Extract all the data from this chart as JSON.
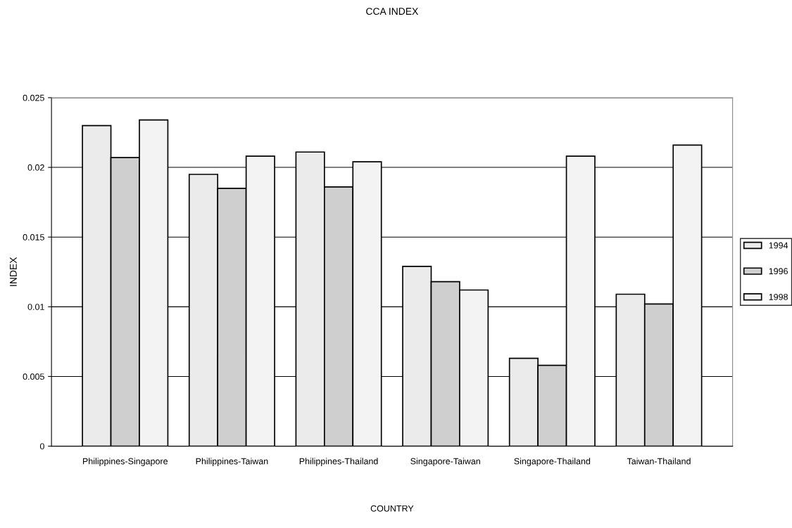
{
  "chart_data": {
    "type": "bar",
    "title": "CCA INDEX",
    "xlabel": "COUNTRY",
    "ylabel": "INDEX",
    "categories": [
      "Philippines-Singapore",
      "Philippines-Taiwan",
      "Philippines-Thailand",
      "Singapore-Taiwan",
      "Singapore-Thailand",
      "Taiwan-Thailand"
    ],
    "series": [
      {
        "name": "1994",
        "color": "#ebebeb",
        "values": [
          0.023,
          0.0195,
          0.0211,
          0.0129,
          0.0063,
          0.0109
        ]
      },
      {
        "name": "1996",
        "color": "#cfcfcf",
        "values": [
          0.0207,
          0.0185,
          0.0186,
          0.0118,
          0.0058,
          0.0102
        ]
      },
      {
        "name": "1998",
        "color": "#f3f3f3",
        "values": [
          0.0234,
          0.0208,
          0.0204,
          0.0112,
          0.0208,
          0.0216
        ]
      }
    ],
    "ylim": [
      0,
      0.025
    ],
    "yticks": [
      0,
      0.005,
      0.01,
      0.015,
      0.02,
      0.025
    ],
    "grid": "y",
    "legend": "right"
  }
}
